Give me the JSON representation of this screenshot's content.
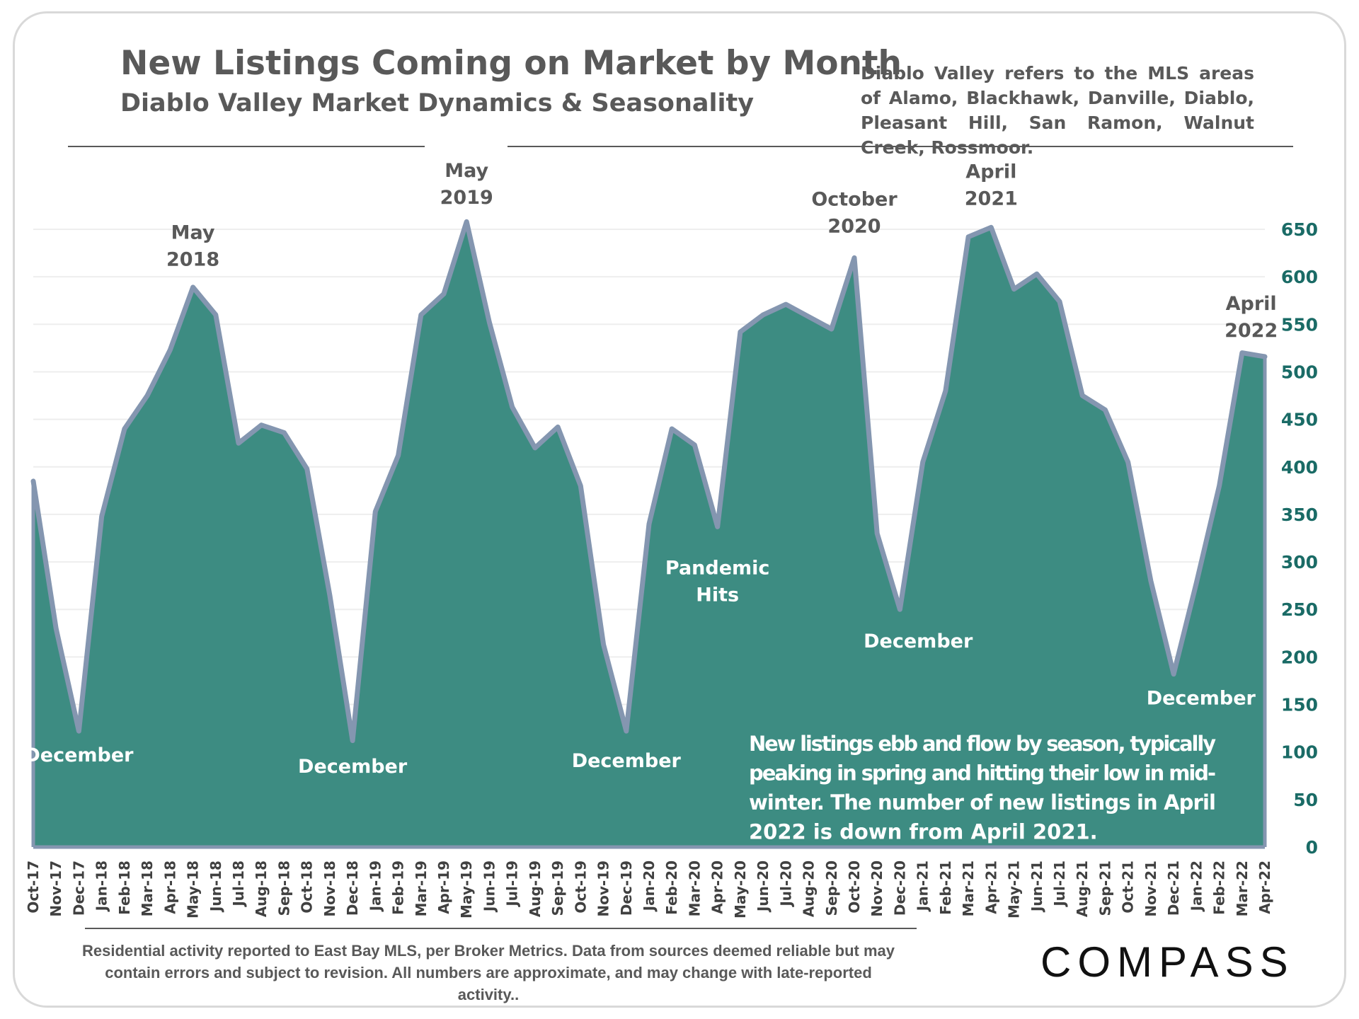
{
  "header": {
    "title": "New Listings Coming on Market by Month",
    "subtitle": "Diablo Valley Market Dynamics & Seasonality",
    "note": "Diablo Valley refers to the MLS areas of Alamo, Blackhawk, Danville, Diablo, Pleasant Hill, San Ramon, Walnut Creek, Rossmoor."
  },
  "footer": {
    "disclaimer": "Residential activity reported to East Bay MLS, per Broker Metrics. Data from sources deemed reliable but may contain errors and subject to revision. All numbers are approximate, and may change with late-reported activity..",
    "logo_text": "COMPASS"
  },
  "colors": {
    "area_fill": "#3d8c82",
    "area_outline": "#8496b0",
    "axis_text": "#1a6b66",
    "annotation_dark": "#595959",
    "annotation_light": "#ffffff",
    "gridline": "#eeeeee"
  },
  "chart_data": {
    "type": "area",
    "title": "New Listings Coming on Market by Month",
    "subtitle": "Diablo Valley Market Dynamics & Seasonality",
    "categories": [
      "Oct-17",
      "Nov-17",
      "Dec-17",
      "Jan-18",
      "Feb-18",
      "Mar-18",
      "Apr-18",
      "May-18",
      "Jun-18",
      "Jul-18",
      "Aug-18",
      "Sep-18",
      "Oct-18",
      "Nov-18",
      "Dec-18",
      "Jan-19",
      "Feb-19",
      "Mar-19",
      "Apr-19",
      "May-19",
      "Jun-19",
      "Jul-19",
      "Aug-19",
      "Sep-19",
      "Oct-19",
      "Nov-19",
      "Dec-19",
      "Jan-20",
      "Feb-20",
      "Mar-20",
      "Apr-20",
      "May-20",
      "Jun-20",
      "Jul-20",
      "Aug-20",
      "Sep-20",
      "Oct-20",
      "Nov-20",
      "Dec-20",
      "Jan-21",
      "Feb-21",
      "Mar-21",
      "Apr-21",
      "May-21",
      "Jun-21",
      "Jul-21",
      "Aug-21",
      "Sep-21",
      "Oct-21",
      "Nov-21",
      "Dec-21",
      "Jan-22",
      "Feb-22",
      "Mar-22",
      "Apr-22"
    ],
    "series": [
      {
        "name": "New Listings",
        "values": [
          385,
          230,
          122,
          348,
          440,
          475,
          523,
          589,
          560,
          425,
          444,
          436,
          398,
          265,
          112,
          353,
          412,
          560,
          582,
          658,
          552,
          463,
          420,
          442,
          380,
          213,
          122,
          340,
          440,
          423,
          337,
          542,
          560,
          571,
          558,
          545,
          620,
          330,
          250,
          405,
          480,
          642,
          652,
          587,
          603,
          574,
          475,
          460,
          405,
          280,
          182,
          278,
          380,
          520,
          516
        ]
      }
    ],
    "y_axis": {
      "min": 0,
      "max": 650,
      "step": 50,
      "position": "right",
      "ticks": [
        0,
        50,
        100,
        150,
        200,
        250,
        300,
        350,
        400,
        450,
        500,
        550,
        600,
        650
      ]
    },
    "xlabel": "",
    "ylabel": "",
    "grid": true,
    "annotations": [
      {
        "lines": [
          "December"
        ],
        "category_index": 2,
        "value": 90,
        "style": "light"
      },
      {
        "lines": [
          "May",
          "2018"
        ],
        "category_index": 7,
        "value": 640,
        "style": "dark"
      },
      {
        "lines": [
          "December"
        ],
        "category_index": 14,
        "value": 78,
        "style": "light"
      },
      {
        "lines": [
          "May",
          "2019"
        ],
        "category_index": 19,
        "value": 705,
        "style": "dark"
      },
      {
        "lines": [
          "December"
        ],
        "category_index": 26,
        "value": 84,
        "style": "light"
      },
      {
        "lines": [
          "Pandemic",
          "Hits"
        ],
        "category_index": 30,
        "value": 287,
        "style": "light"
      },
      {
        "lines": [
          "October",
          "2020"
        ],
        "category_index": 36,
        "value": 675,
        "style": "dark"
      },
      {
        "lines": [
          "December"
        ],
        "category_index": 38.8,
        "value": 210,
        "style": "light"
      },
      {
        "lines": [
          "April",
          "2021"
        ],
        "category_index": 42,
        "value": 704,
        "style": "dark"
      },
      {
        "lines": [
          "December"
        ],
        "category_index": 51.2,
        "value": 150,
        "style": "light"
      },
      {
        "lines": [
          "April",
          "2022"
        ],
        "category_index": 53.4,
        "value": 565,
        "style": "dark"
      }
    ],
    "summary": [
      "New listings ebb and flow by season, typically",
      "peaking in spring and hitting their low in mid-",
      "winter.  The number of new listings in April",
      "2022 is down from April 2021."
    ]
  }
}
